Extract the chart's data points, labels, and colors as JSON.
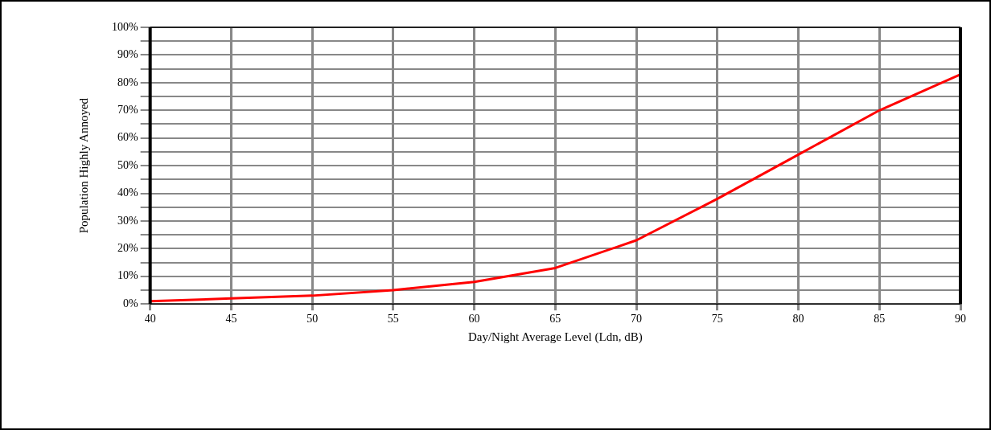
{
  "chart_data": {
    "type": "line",
    "xlabel": "Day/Night Average Level (Ldn, dB)",
    "ylabel": "Population Highly Annoyed",
    "x": [
      40,
      45,
      50,
      55,
      60,
      65,
      70,
      75,
      80,
      85,
      90
    ],
    "series": [
      {
        "color": "#ff0000",
        "values": [
          1,
          2,
          3,
          5,
          8,
          13,
          23,
          38,
          54,
          70,
          83
        ]
      }
    ],
    "xlim": [
      40,
      90
    ],
    "xticks": [
      40,
      45,
      50,
      55,
      60,
      65,
      70,
      75,
      80,
      85,
      90
    ],
    "ylim": [
      0,
      100
    ],
    "yticks": [
      {
        "value": 0,
        "label": "0%"
      },
      {
        "value": 5,
        "label": null
      },
      {
        "value": 10,
        "label": "10%"
      },
      {
        "value": 15,
        "label": null
      },
      {
        "value": 20,
        "label": "20%"
      },
      {
        "value": 25,
        "label": null
      },
      {
        "value": 30,
        "label": "30%"
      },
      {
        "value": 35,
        "label": null
      },
      {
        "value": 40,
        "label": "40%"
      },
      {
        "value": 45,
        "label": null
      },
      {
        "value": 50,
        "label": "50%"
      },
      {
        "value": 55,
        "label": null
      },
      {
        "value": 60,
        "label": "60%"
      },
      {
        "value": 65,
        "label": null
      },
      {
        "value": 70,
        "label": "70%"
      },
      {
        "value": 75,
        "label": null
      },
      {
        "value": 80,
        "label": "80%"
      },
      {
        "value": 85,
        "label": null
      },
      {
        "value": 90,
        "label": "90%"
      },
      {
        "value": 95,
        "label": null
      },
      {
        "value": 100,
        "label": "100%"
      }
    ],
    "grid": true,
    "legend": false,
    "line_style": "solid"
  }
}
